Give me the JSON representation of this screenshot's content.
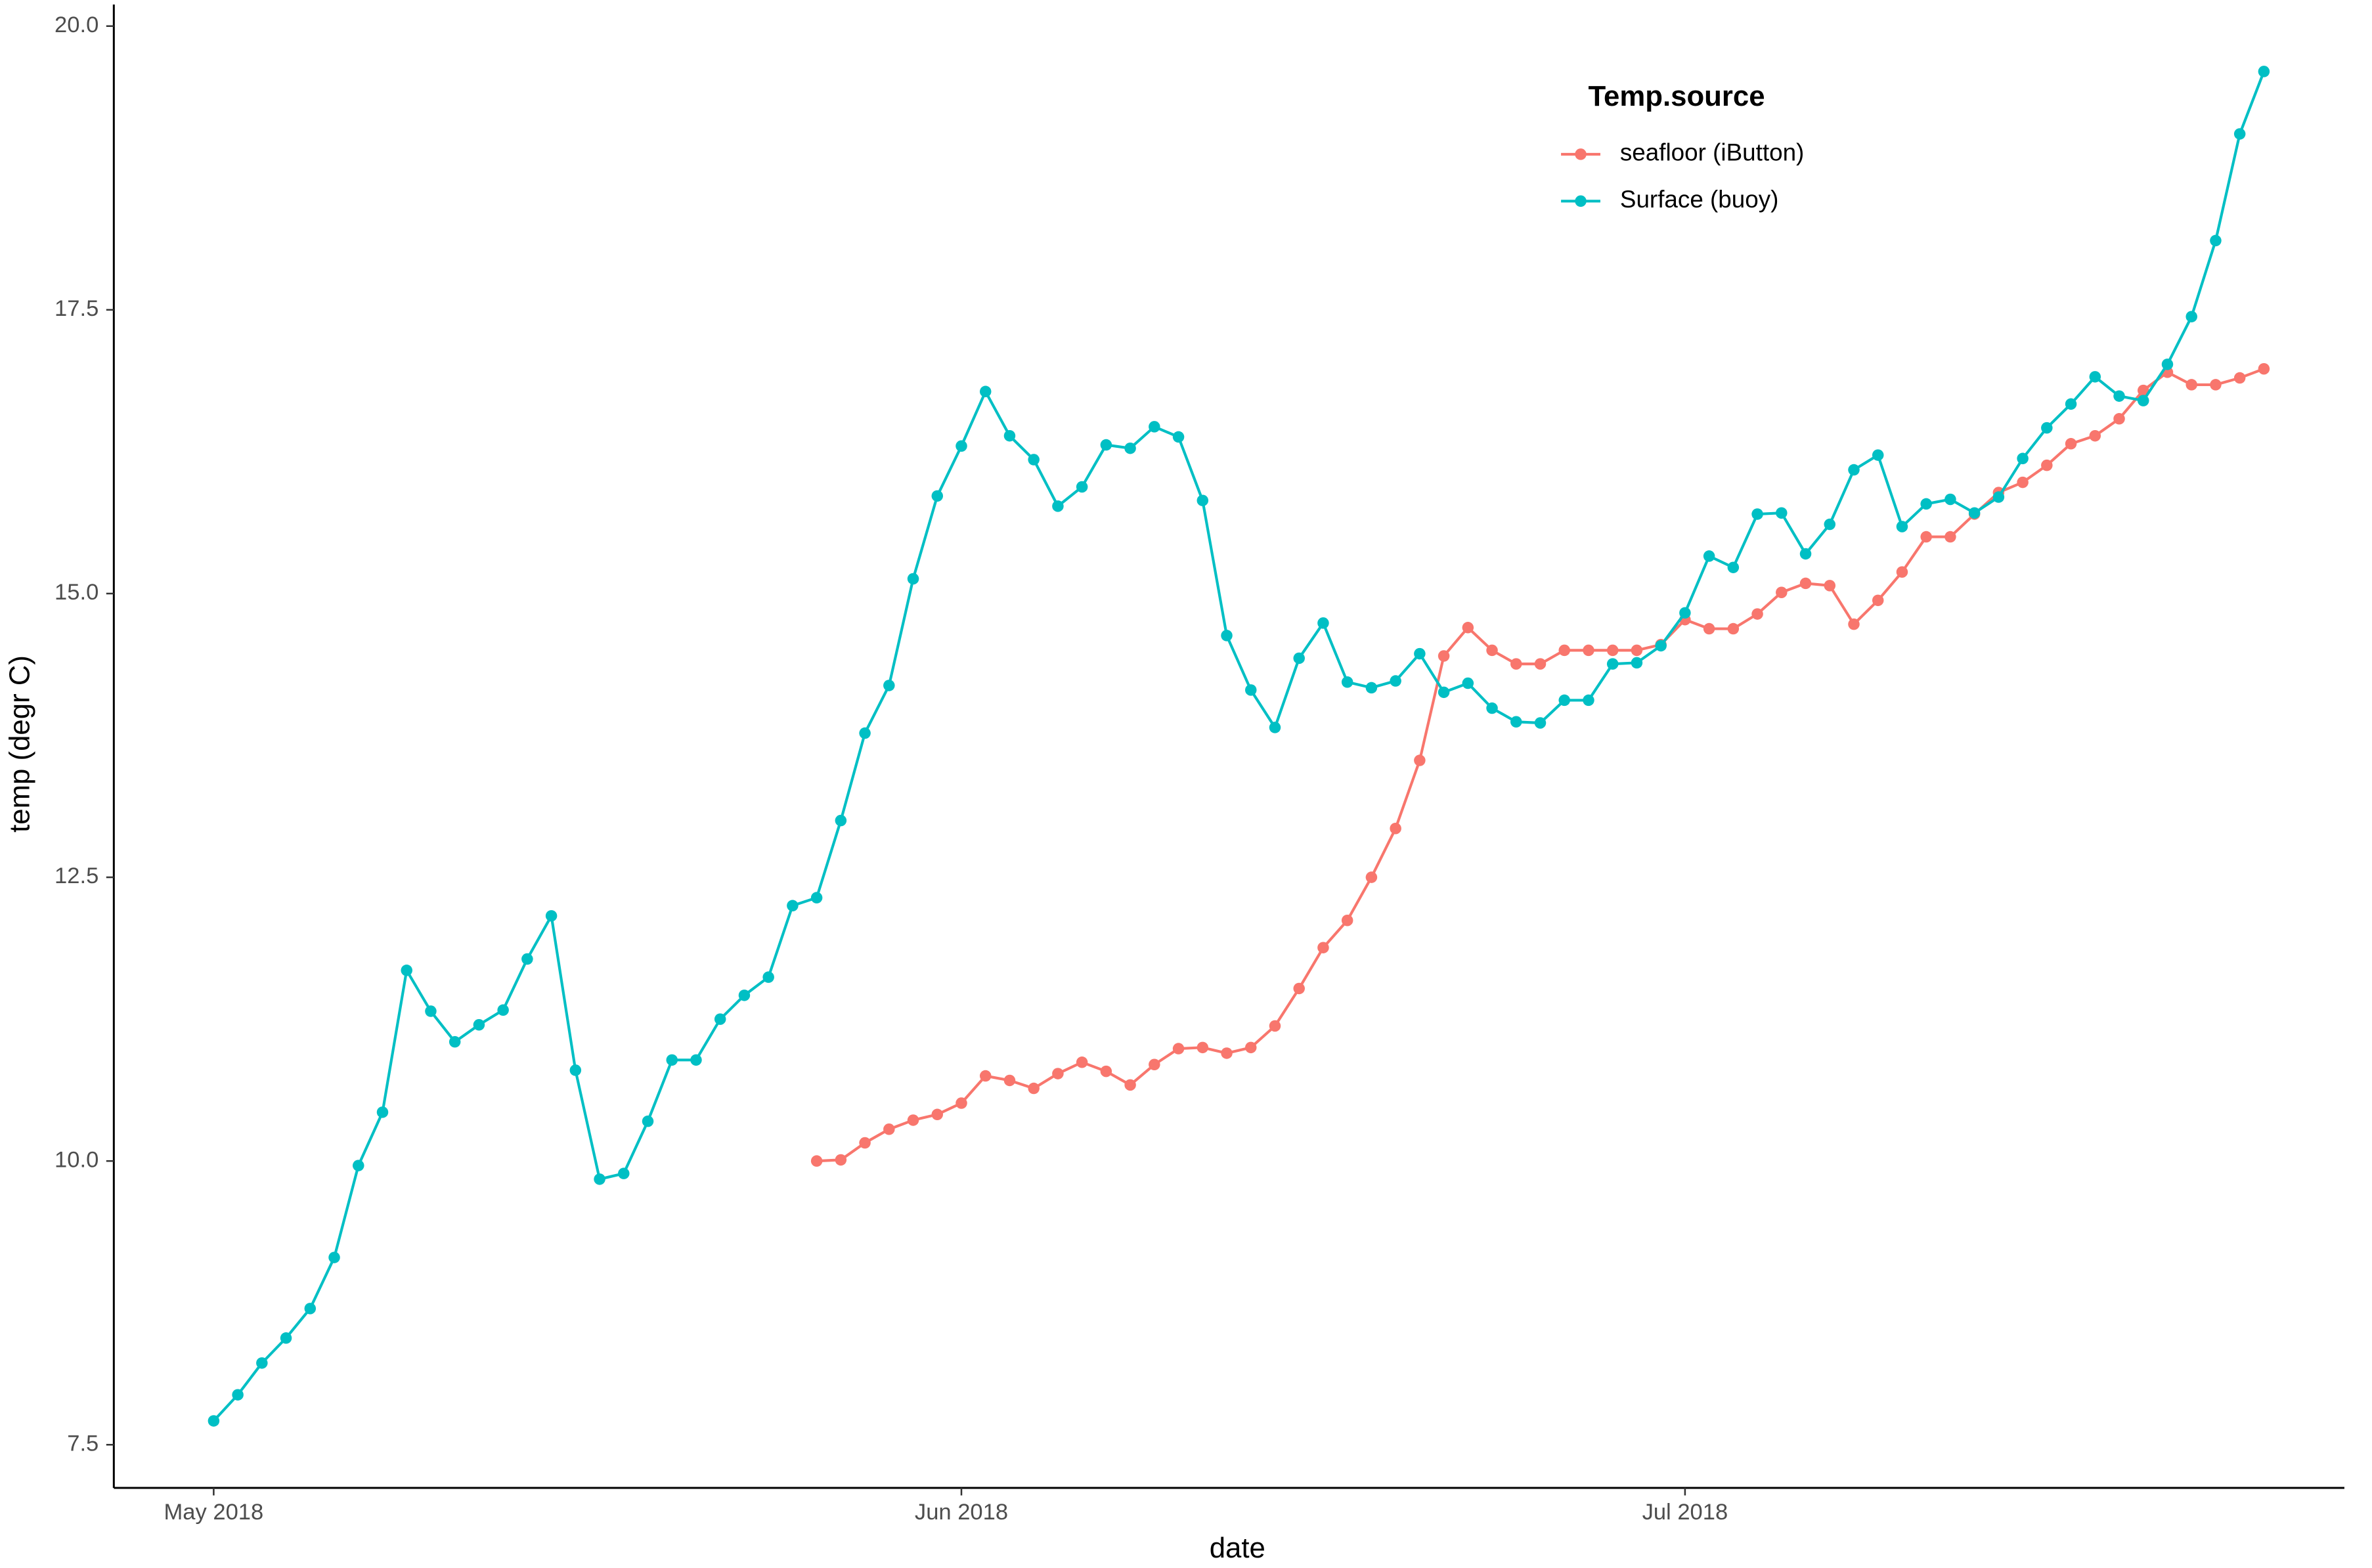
{
  "chart_data": {
    "type": "line",
    "x_label": "date",
    "y_label": "temp (degr C)",
    "legend_title": "Temp.source",
    "categories": [
      "May 2018",
      null,
      null,
      null,
      null,
      null,
      null,
      null,
      null,
      null,
      null,
      null,
      null,
      null,
      null,
      null,
      null,
      null,
      null,
      null,
      null,
      null,
      null,
      null,
      null,
      null,
      null,
      null,
      null,
      null,
      null,
      "Jun 2018",
      null,
      null,
      null,
      null,
      null,
      null,
      null,
      null,
      null,
      null,
      null,
      null,
      null,
      null,
      null,
      null,
      null,
      null,
      null,
      null,
      null,
      null,
      null,
      null,
      null,
      null,
      null,
      null,
      null,
      "Jul 2018",
      null,
      null,
      null,
      null,
      null,
      null,
      null,
      null,
      null,
      null,
      null,
      null,
      null,
      null,
      null,
      null,
      null,
      null,
      null,
      null,
      null,
      null,
      null,
      null
    ],
    "series": [
      {
        "name": "seafloor (iButton)",
        "color": "#F8766D",
        "values": [
          null,
          null,
          null,
          null,
          null,
          null,
          null,
          null,
          null,
          null,
          null,
          null,
          null,
          null,
          null,
          null,
          null,
          null,
          null,
          null,
          null,
          null,
          null,
          null,
          null,
          10.0,
          10.01,
          10.16,
          10.28,
          10.36,
          10.41,
          10.51,
          10.75,
          10.71,
          10.64,
          10.77,
          10.87,
          10.79,
          10.67,
          10.85,
          10.99,
          11.0,
          10.95,
          11.0,
          11.19,
          11.52,
          11.88,
          12.12,
          12.5,
          12.93,
          13.53,
          14.45,
          14.7,
          14.5,
          14.38,
          14.38,
          14.5,
          14.5,
          14.5,
          14.5,
          14.55,
          14.77,
          14.69,
          14.69,
          14.82,
          15.01,
          15.09,
          15.07,
          14.73,
          14.94,
          15.19,
          15.5,
          15.5,
          15.7,
          15.89,
          15.98,
          16.13,
          16.32,
          16.39,
          16.54,
          16.79,
          16.95,
          16.84,
          16.84,
          16.9,
          16.98
        ]
      },
      {
        "name": "Surface (buoy)",
        "color": "#00BFC4",
        "values": [
          7.71,
          7.94,
          8.22,
          8.44,
          8.7,
          9.15,
          9.96,
          10.43,
          11.68,
          11.32,
          11.05,
          11.2,
          11.33,
          11.78,
          12.16,
          10.8,
          9.84,
          9.89,
          10.35,
          10.89,
          10.89,
          11.25,
          11.46,
          11.62,
          12.25,
          12.32,
          13.0,
          13.77,
          14.19,
          15.13,
          15.86,
          16.3,
          16.78,
          16.39,
          16.18,
          15.77,
          15.94,
          16.31,
          16.28,
          16.47,
          16.38,
          15.82,
          14.63,
          14.15,
          13.82,
          14.43,
          14.74,
          14.22,
          14.17,
          14.23,
          14.47,
          14.13,
          14.21,
          13.99,
          13.87,
          13.86,
          14.06,
          14.06,
          14.38,
          14.39,
          14.54,
          14.83,
          15.33,
          15.23,
          15.7,
          15.71,
          15.35,
          15.61,
          16.09,
          16.22,
          15.59,
          15.79,
          15.83,
          15.71,
          15.85,
          16.19,
          16.46,
          16.67,
          16.91,
          16.74,
          16.7,
          17.02,
          17.44,
          18.11,
          19.05,
          19.6
        ]
      }
    ],
    "ylim": [
      7.12,
      20.19
    ],
    "yticks": [
      7.5,
      {
        "value": 10,
        "label": "10.0"
      },
      12.5,
      {
        "value": 15,
        "label": "15.0"
      },
      17.5,
      {
        "value": 20,
        "label": "20.0"
      }
    ],
    "grid": false
  }
}
